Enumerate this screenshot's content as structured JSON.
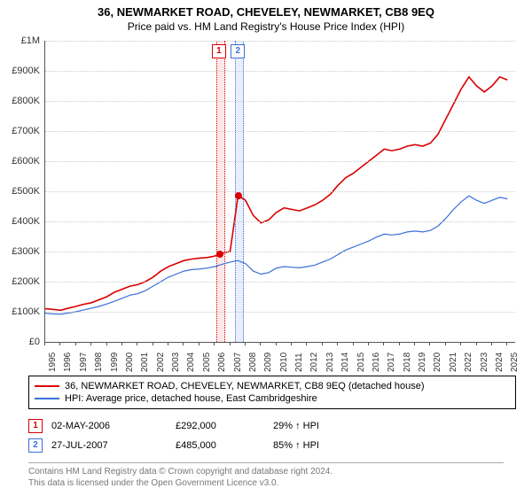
{
  "title": "36, NEWMARKET ROAD, CHEVELEY, NEWMARKET, CB8 9EQ",
  "subtitle": "Price paid vs. HM Land Registry's House Price Index (HPI)",
  "chart": {
    "type": "line",
    "background_color": "#ffffff",
    "grid_color": "#cccccc",
    "axis_color": "#555555",
    "x_range": [
      1995,
      2025.5
    ],
    "y_range": [
      0,
      1000000
    ],
    "y_ticks": [
      0,
      100000,
      200000,
      300000,
      400000,
      500000,
      600000,
      700000,
      800000,
      900000,
      1000000
    ],
    "y_tick_labels": [
      "£0",
      "£100K",
      "£200K",
      "£300K",
      "£400K",
      "£500K",
      "£600K",
      "£700K",
      "£800K",
      "£900K",
      "£1M"
    ],
    "x_ticks": [
      1995,
      1996,
      1997,
      1998,
      1999,
      2000,
      2001,
      2002,
      2003,
      2004,
      2005,
      2006,
      2007,
      2008,
      2009,
      2010,
      2011,
      2012,
      2013,
      2014,
      2015,
      2016,
      2017,
      2018,
      2019,
      2020,
      2021,
      2022,
      2023,
      2024,
      2025
    ],
    "x_tick_labels": [
      "1995",
      "1996",
      "1997",
      "1998",
      "1999",
      "2000",
      "2001",
      "2002",
      "2003",
      "2004",
      "2005",
      "2006",
      "2007",
      "2008",
      "2009",
      "2010",
      "2011",
      "2012",
      "2013",
      "2014",
      "2015",
      "2016",
      "2017",
      "2018",
      "2019",
      "2020",
      "2021",
      "2022",
      "2023",
      "2024",
      "2025"
    ],
    "tick_fontsize": 11,
    "series": [
      {
        "name": "36, NEWMARKET ROAD, CHEVELEY, NEWMARKET, CB8 9EQ (detached house)",
        "color": "#d90000",
        "line_width": 1.6,
        "data": [
          [
            1995.0,
            110000
          ],
          [
            1995.5,
            108000
          ],
          [
            1996.0,
            105000
          ],
          [
            1996.5,
            112000
          ],
          [
            1997.0,
            118000
          ],
          [
            1997.5,
            125000
          ],
          [
            1998.0,
            130000
          ],
          [
            1998.5,
            140000
          ],
          [
            1999.0,
            150000
          ],
          [
            1999.5,
            165000
          ],
          [
            2000.0,
            175000
          ],
          [
            2000.5,
            185000
          ],
          [
            2001.0,
            190000
          ],
          [
            2001.5,
            200000
          ],
          [
            2002.0,
            215000
          ],
          [
            2002.5,
            235000
          ],
          [
            2003.0,
            250000
          ],
          [
            2003.5,
            260000
          ],
          [
            2004.0,
            270000
          ],
          [
            2004.5,
            275000
          ],
          [
            2005.0,
            278000
          ],
          [
            2005.5,
            280000
          ],
          [
            2006.0,
            285000
          ],
          [
            2006.33,
            292000
          ],
          [
            2006.5,
            295000
          ],
          [
            2007.0,
            300000
          ],
          [
            2007.5,
            480000
          ],
          [
            2007.56,
            485000
          ],
          [
            2008.0,
            470000
          ],
          [
            2008.5,
            420000
          ],
          [
            2009.0,
            395000
          ],
          [
            2009.5,
            405000
          ],
          [
            2010.0,
            430000
          ],
          [
            2010.5,
            445000
          ],
          [
            2011.0,
            440000
          ],
          [
            2011.5,
            435000
          ],
          [
            2012.0,
            445000
          ],
          [
            2012.5,
            455000
          ],
          [
            2013.0,
            470000
          ],
          [
            2013.5,
            490000
          ],
          [
            2014.0,
            520000
          ],
          [
            2014.5,
            545000
          ],
          [
            2015.0,
            560000
          ],
          [
            2015.5,
            580000
          ],
          [
            2016.0,
            600000
          ],
          [
            2016.5,
            620000
          ],
          [
            2017.0,
            640000
          ],
          [
            2017.5,
            635000
          ],
          [
            2018.0,
            640000
          ],
          [
            2018.5,
            650000
          ],
          [
            2019.0,
            655000
          ],
          [
            2019.5,
            650000
          ],
          [
            2020.0,
            660000
          ],
          [
            2020.5,
            690000
          ],
          [
            2021.0,
            740000
          ],
          [
            2021.5,
            790000
          ],
          [
            2022.0,
            840000
          ],
          [
            2022.5,
            880000
          ],
          [
            2023.0,
            850000
          ],
          [
            2023.5,
            830000
          ],
          [
            2024.0,
            850000
          ],
          [
            2024.5,
            880000
          ],
          [
            2025.0,
            870000
          ]
        ]
      },
      {
        "name": "HPI: Average price, detached house, East Cambridgeshire",
        "color": "#3a6fd8",
        "line_width": 1.2,
        "data": [
          [
            1995.0,
            95000
          ],
          [
            1995.5,
            93000
          ],
          [
            1996.0,
            92000
          ],
          [
            1996.5,
            96000
          ],
          [
            1997.0,
            100000
          ],
          [
            1997.5,
            106000
          ],
          [
            1998.0,
            112000
          ],
          [
            1998.5,
            118000
          ],
          [
            1999.0,
            126000
          ],
          [
            1999.5,
            135000
          ],
          [
            2000.0,
            145000
          ],
          [
            2000.5,
            155000
          ],
          [
            2001.0,
            160000
          ],
          [
            2001.5,
            170000
          ],
          [
            2002.0,
            185000
          ],
          [
            2002.5,
            200000
          ],
          [
            2003.0,
            215000
          ],
          [
            2003.5,
            225000
          ],
          [
            2004.0,
            235000
          ],
          [
            2004.5,
            240000
          ],
          [
            2005.0,
            242000
          ],
          [
            2005.5,
            245000
          ],
          [
            2006.0,
            250000
          ],
          [
            2006.5,
            258000
          ],
          [
            2007.0,
            265000
          ],
          [
            2007.5,
            270000
          ],
          [
            2008.0,
            260000
          ],
          [
            2008.5,
            235000
          ],
          [
            2009.0,
            225000
          ],
          [
            2009.5,
            230000
          ],
          [
            2010.0,
            245000
          ],
          [
            2010.5,
            250000
          ],
          [
            2011.0,
            248000
          ],
          [
            2011.5,
            246000
          ],
          [
            2012.0,
            250000
          ],
          [
            2012.5,
            255000
          ],
          [
            2013.0,
            265000
          ],
          [
            2013.5,
            275000
          ],
          [
            2014.0,
            290000
          ],
          [
            2014.5,
            305000
          ],
          [
            2015.0,
            315000
          ],
          [
            2015.5,
            325000
          ],
          [
            2016.0,
            335000
          ],
          [
            2016.5,
            348000
          ],
          [
            2017.0,
            358000
          ],
          [
            2017.5,
            355000
          ],
          [
            2018.0,
            358000
          ],
          [
            2018.5,
            365000
          ],
          [
            2019.0,
            368000
          ],
          [
            2019.5,
            365000
          ],
          [
            2020.0,
            370000
          ],
          [
            2020.5,
            385000
          ],
          [
            2021.0,
            410000
          ],
          [
            2021.5,
            440000
          ],
          [
            2022.0,
            465000
          ],
          [
            2022.5,
            485000
          ],
          [
            2023.0,
            470000
          ],
          [
            2023.5,
            460000
          ],
          [
            2024.0,
            470000
          ],
          [
            2024.5,
            480000
          ],
          [
            2025.0,
            475000
          ]
        ]
      }
    ],
    "event_bands": [
      {
        "x": 2006.33,
        "color": "#d90000",
        "fill": "#fde8e8",
        "label": "1"
      },
      {
        "x": 2007.56,
        "color": "#3a6fd8",
        "fill": "#e8eefb",
        "label": "2"
      }
    ],
    "markers": [
      {
        "x": 2006.33,
        "y": 292000,
        "color": "#d90000",
        "size": 8
      },
      {
        "x": 2007.56,
        "y": 485000,
        "color": "#d90000",
        "size": 8
      }
    ]
  },
  "legend": {
    "border_color": "#000000",
    "items": [
      {
        "color": "#d90000",
        "label": "36, NEWMARKET ROAD, CHEVELEY, NEWMARKET, CB8 9EQ (detached house)"
      },
      {
        "color": "#3a6fd8",
        "label": "HPI: Average price, detached house, East Cambridgeshire"
      }
    ]
  },
  "events": [
    {
      "n": "1",
      "color": "#d90000",
      "date": "02-MAY-2006",
      "price": "£292,000",
      "hpi": "29% ↑ HPI"
    },
    {
      "n": "2",
      "color": "#3a6fd8",
      "date": "27-JUL-2007",
      "price": "£485,000",
      "hpi": "85% ↑ HPI"
    }
  ],
  "footer_line1": "Contains HM Land Registry data © Crown copyright and database right 2024.",
  "footer_line2": "This data is licensed under the Open Government Licence v3.0."
}
